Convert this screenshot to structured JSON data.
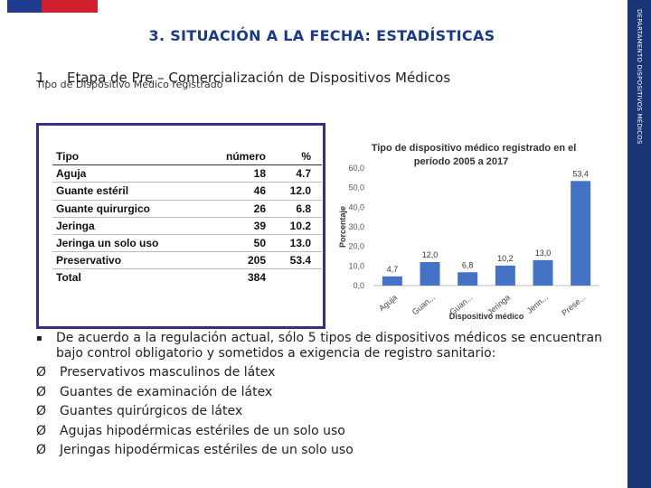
{
  "header": {
    "title": "3. SITUACIÓN A LA FECHA: ESTADÍSTICAS",
    "side_label": "DEPARTAMENTO DISPOSITIVOS MÉDICOS",
    "flag_colors": [
      "#1f3b8e",
      "#d0202e"
    ]
  },
  "section": {
    "number": "1.",
    "title": "Etapa de Pre – Comercialización de Dispositivos Médicos",
    "caption": "Tipo de Dispositivo Médico registrado"
  },
  "table": {
    "headers": [
      "Tipo",
      "número",
      "%"
    ],
    "rows": [
      [
        "Aguja",
        "18",
        "4.7"
      ],
      [
        "Guante estéril",
        "46",
        "12.0"
      ],
      [
        "Guante quirurgico",
        "26",
        "6.8"
      ],
      [
        "Jeringa",
        "39",
        "10.2"
      ],
      [
        "Jeringa un solo uso",
        "50",
        "13.0"
      ],
      [
        "Preservativo",
        "205",
        "53.4"
      ],
      [
        "Total",
        "384",
        ""
      ]
    ]
  },
  "chart_data": {
    "type": "bar",
    "title": "Tipo de dispositivo médico registrado en el período 2005 a 2017",
    "categories": [
      "Aguja",
      "Guan...",
      "Guan...",
      "Jeringa",
      "Jerin...",
      "Prese..."
    ],
    "values": [
      4.7,
      12.0,
      6.8,
      10.2,
      13.0,
      53.4
    ],
    "data_labels": [
      "4,7",
      "12,0",
      "6,8",
      "10,2",
      "13,0",
      "53,4"
    ],
    "xlabel": "Dispositivo médico",
    "ylabel": "Porcentaje",
    "ylim": [
      0,
      60
    ],
    "yticks": [
      "0,0",
      "10,0",
      "20,0",
      "30,0",
      "40,0",
      "50,0",
      "60,0"
    ],
    "bar_color": "#4472c4",
    "grid": false
  },
  "bullets": {
    "intro_marker": "▪",
    "intro": "De acuerdo a la regulación actual, sólo 5 tipos de dispositivos médicos se encuentran bajo control obligatorio y sometidos a exigencia de registro sanitario:",
    "marker": "Ø",
    "items": [
      "Preservativos masculinos de látex",
      "Guantes de examinación de látex",
      "Guantes quirúrgicos de látex",
      "Agujas hipodérmicas estériles de un solo uso",
      "Jeringas hipodérmicas estériles de un solo uso"
    ]
  }
}
